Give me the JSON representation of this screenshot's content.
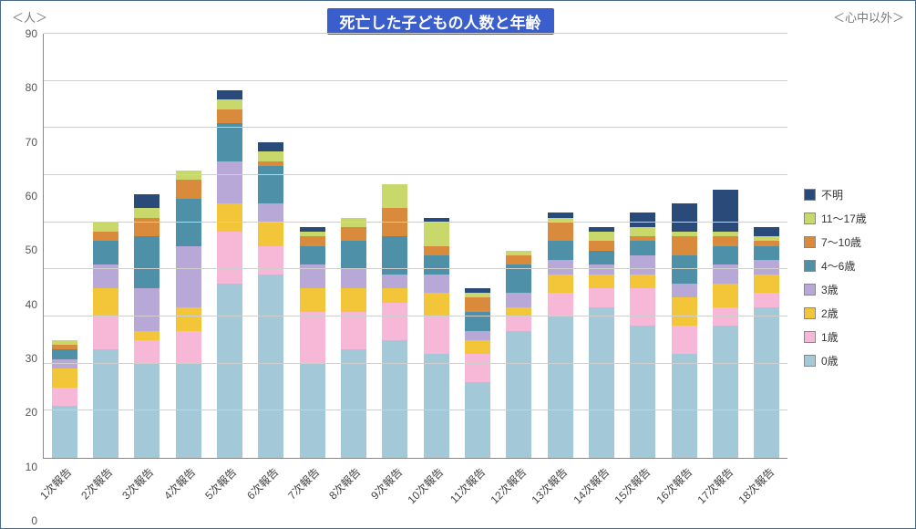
{
  "title": "死亡した子どもの人数と年齢",
  "title_bg": "#3a5fcd",
  "y_axis_label": "＜人＞",
  "note_right": "＜心中以外＞",
  "ylim": [
    0,
    90
  ],
  "ytick_step": 10,
  "background_color": "#ffffff",
  "grid_color": "#cfcfcf",
  "series": [
    {
      "key": "age0",
      "label": "0歳",
      "color": "#a3c8d8",
      "dotted": true
    },
    {
      "key": "age1",
      "label": "1歳",
      "color": "#f7b8d8"
    },
    {
      "key": "age2",
      "label": "2歳",
      "color": "#f3c63a"
    },
    {
      "key": "age3",
      "label": "3歳",
      "color": "#b8a8d8"
    },
    {
      "key": "age4_6",
      "label": "4～6歳",
      "color": "#4d90a8"
    },
    {
      "key": "age7_10",
      "label": "7～10歳",
      "color": "#d98a3a"
    },
    {
      "key": "age11_17",
      "label": "11～17歳",
      "color": "#c8d86a"
    },
    {
      "key": "unk",
      "label": "不明",
      "color": "#2a4a7a"
    }
  ],
  "categories": [
    "1次報告",
    "2次報告",
    "3次報告",
    "4次報告",
    "5次報告",
    "6次報告",
    "7次報告",
    "8次報告",
    "9次報告",
    "10次報告",
    "11次報告",
    "12次報告",
    "13次報告",
    "14次報告",
    "15次報告",
    "16次報告",
    "17次報告",
    "18次報告"
  ],
  "data": [
    {
      "age0": 11,
      "age1": 4,
      "age2": 4,
      "age3": 2,
      "age4_6": 2,
      "age7_10": 1,
      "age11_17": 1,
      "unk": 0
    },
    {
      "age0": 23,
      "age1": 7,
      "age2": 6,
      "age3": 5,
      "age4_6": 5,
      "age7_10": 2,
      "age11_17": 2,
      "unk": 0
    },
    {
      "age0": 20,
      "age1": 5,
      "age2": 2,
      "age3": 9,
      "age4_6": 11,
      "age7_10": 4,
      "age11_17": 2,
      "unk": 3
    },
    {
      "age0": 20,
      "age1": 7,
      "age2": 5,
      "age3": 13,
      "age4_6": 10,
      "age7_10": 4,
      "age11_17": 2,
      "unk": 0
    },
    {
      "age0": 37,
      "age1": 11,
      "age2": 6,
      "age3": 9,
      "age4_6": 8,
      "age7_10": 3,
      "age11_17": 2,
      "unk": 2
    },
    {
      "age0": 39,
      "age1": 6,
      "age2": 5,
      "age3": 4,
      "age4_6": 8,
      "age7_10": 1,
      "age11_17": 2,
      "unk": 2
    },
    {
      "age0": 20,
      "age1": 11,
      "age2": 5,
      "age3": 5,
      "age4_6": 4,
      "age7_10": 2,
      "age11_17": 1,
      "unk": 1
    },
    {
      "age0": 23,
      "age1": 8,
      "age2": 5,
      "age3": 4,
      "age4_6": 6,
      "age7_10": 3,
      "age11_17": 2,
      "unk": 0
    },
    {
      "age0": 25,
      "age1": 8,
      "age2": 3,
      "age3": 3,
      "age4_6": 8,
      "age7_10": 6,
      "age11_17": 5,
      "unk": 0
    },
    {
      "age0": 22,
      "age1": 8,
      "age2": 5,
      "age3": 4,
      "age4_6": 4,
      "age7_10": 2,
      "age11_17": 5,
      "unk": 1
    },
    {
      "age0": 16,
      "age1": 6,
      "age2": 3,
      "age3": 2,
      "age4_6": 4,
      "age7_10": 3,
      "age11_17": 1,
      "unk": 1
    },
    {
      "age0": 27,
      "age1": 3,
      "age2": 2,
      "age3": 3,
      "age4_6": 6,
      "age7_10": 2,
      "age11_17": 1,
      "unk": 0
    },
    {
      "age0": 30,
      "age1": 5,
      "age2": 4,
      "age3": 3,
      "age4_6": 4,
      "age7_10": 4,
      "age11_17": 1,
      "unk": 1
    },
    {
      "age0": 32,
      "age1": 4,
      "age2": 3,
      "age3": 2,
      "age4_6": 3,
      "age7_10": 2,
      "age11_17": 2,
      "unk": 1
    },
    {
      "age0": 28,
      "age1": 8,
      "age2": 3,
      "age3": 4,
      "age4_6": 3,
      "age7_10": 1,
      "age11_17": 2,
      "unk": 3
    },
    {
      "age0": 22,
      "age1": 6,
      "age2": 6,
      "age3": 3,
      "age4_6": 6,
      "age7_10": 4,
      "age11_17": 1,
      "unk": 6
    },
    {
      "age0": 28,
      "age1": 4,
      "age2": 5,
      "age3": 4,
      "age4_6": 4,
      "age7_10": 2,
      "age11_17": 1,
      "unk": 9
    },
    {
      "age0": 32,
      "age1": 3,
      "age2": 4,
      "age3": 3,
      "age4_6": 3,
      "age7_10": 1,
      "age11_17": 1,
      "unk": 2
    }
  ]
}
